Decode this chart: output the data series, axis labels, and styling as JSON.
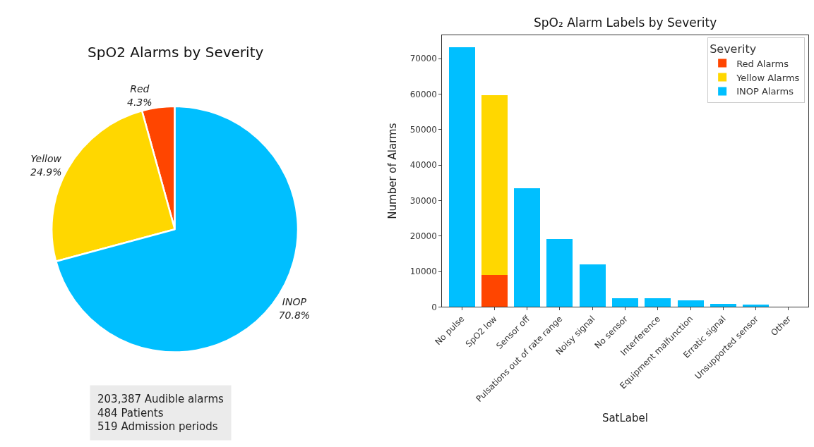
{
  "chart_data": [
    {
      "type": "pie",
      "title": "SpO2 Alarms by Severity",
      "categories": [
        "Red",
        "Yellow",
        "INOP"
      ],
      "values": [
        4.3,
        24.9,
        70.8
      ],
      "value_labels": [
        "4.3%",
        "24.9%",
        "70.8%"
      ],
      "colors": [
        "#ff4500",
        "#ffd700",
        "#00bfff"
      ],
      "legend": false,
      "annotations": [
        "203,387 Audible alarms\n484 Patients\n519 Admission periods"
      ]
    },
    {
      "type": "bar",
      "title": "SpO₂ Alarm Labels by Severity",
      "xlabel": "SatLabel",
      "ylabel": "Number of Alarms",
      "legend_title": "Severity",
      "legend": "top right",
      "stacked": true,
      "categories": [
        "No pulse",
        "SpO2 low",
        "Sensor off",
        "Pulsations out of rate range",
        "Noisy signal",
        "No sensor",
        "Interference",
        "Equipment malfunction",
        "Erratic signal",
        "Unsupported sensor",
        "Other"
      ],
      "ylim": [
        0,
        76600
      ],
      "yticks": [
        0,
        10000,
        20000,
        30000,
        40000,
        50000,
        60000,
        70000
      ],
      "series": [
        {
          "name": "Red Alarms",
          "color": "#ff4500",
          "values": [
            null,
            9000,
            null,
            null,
            null,
            null,
            null,
            null,
            null,
            null,
            null
          ]
        },
        {
          "name": "Yellow Alarms",
          "color": "#ffd700",
          "values": [
            null,
            50700,
            null,
            null,
            null,
            null,
            null,
            null,
            null,
            null,
            null
          ]
        },
        {
          "name": "INOP Alarms",
          "color": "#00bfff",
          "values": [
            73200,
            null,
            33400,
            19200,
            11900,
            2400,
            2400,
            1800,
            900,
            600,
            0
          ]
        }
      ]
    }
  ]
}
